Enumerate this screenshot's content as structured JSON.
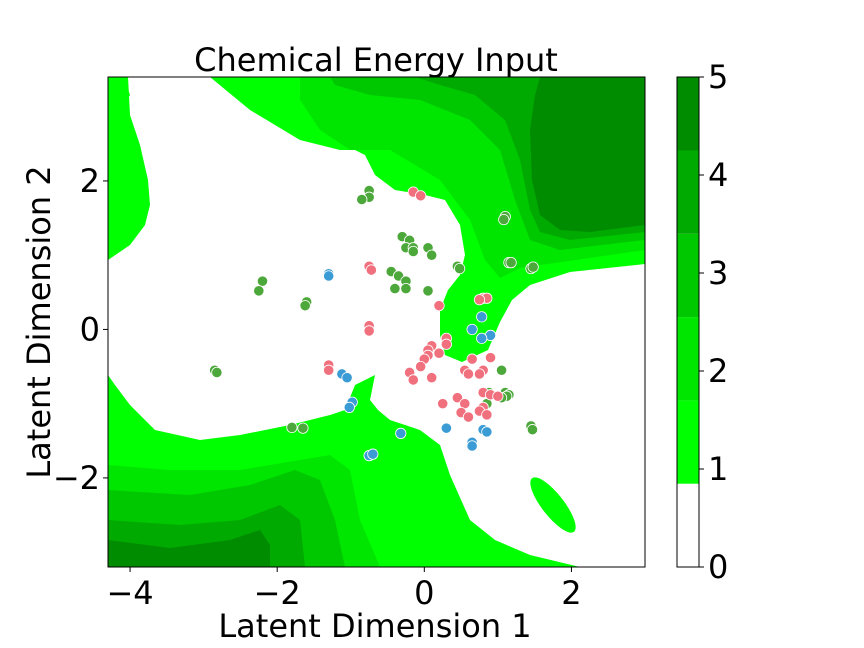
{
  "chart_data": {
    "type": "scatter",
    "title": "Chemical Energy Input",
    "xlabel": "Latent Dimension 1",
    "ylabel": "Latent Dimension 2",
    "xlim": [
      -4.3,
      3.0
    ],
    "ylim": [
      -3.2,
      3.4
    ],
    "xticks": [
      -4,
      -2,
      0,
      2
    ],
    "xtick_labels": [
      "−4",
      "−2",
      "0",
      "2"
    ],
    "yticks": [
      -2,
      0,
      2
    ],
    "ytick_labels": [
      "−2",
      "0",
      "2"
    ],
    "grid": false,
    "colorbar": {
      "range": [
        0,
        5
      ],
      "ticks": [
        0,
        1,
        2,
        3,
        4,
        5
      ],
      "tick_labels": [
        "0",
        "1",
        "2",
        "3",
        "4",
        "5"
      ],
      "levels": [
        {
          "from": 0.0,
          "to": 0.85,
          "color": "#ffffff"
        },
        {
          "from": 0.85,
          "to": 1.7,
          "color": "#00ff00"
        },
        {
          "from": 1.7,
          "to": 2.55,
          "color": "#00e600"
        },
        {
          "from": 2.55,
          "to": 3.4,
          "color": "#00c800"
        },
        {
          "from": 3.4,
          "to": 4.25,
          "color": "#00aa00"
        },
        {
          "from": 4.25,
          "to": 5.0,
          "color": "#008c00"
        }
      ]
    },
    "series": [
      {
        "color": "#4ca83a",
        "points": [
          [
            -0.75,
            1.87
          ],
          [
            -0.75,
            1.78
          ],
          [
            -0.85,
            1.75
          ],
          [
            -0.3,
            1.25
          ],
          [
            -0.2,
            1.2
          ],
          [
            -0.25,
            1.1
          ],
          [
            -0.15,
            1.1
          ],
          [
            -0.15,
            1.05
          ],
          [
            0.05,
            1.1
          ],
          [
            0.1,
            1.0
          ],
          [
            0.45,
            0.85
          ],
          [
            0.48,
            0.82
          ],
          [
            -0.45,
            0.78
          ],
          [
            -0.35,
            0.72
          ],
          [
            -0.25,
            0.65
          ],
          [
            -0.25,
            0.55
          ],
          [
            -0.4,
            0.55
          ],
          [
            0.05,
            0.52
          ],
          [
            1.1,
            1.52
          ],
          [
            1.08,
            1.48
          ],
          [
            1.15,
            0.9
          ],
          [
            1.18,
            0.9
          ],
          [
            1.45,
            0.82
          ],
          [
            1.48,
            0.84
          ],
          [
            -2.2,
            0.65
          ],
          [
            -2.25,
            0.52
          ],
          [
            -1.6,
            0.37
          ],
          [
            -1.62,
            0.32
          ],
          [
            -2.85,
            -0.55
          ],
          [
            -2.82,
            -0.58
          ],
          [
            -1.8,
            -1.32
          ],
          [
            -1.65,
            -1.33
          ],
          [
            1.05,
            -0.55
          ],
          [
            0.88,
            -0.85
          ],
          [
            1.1,
            -0.85
          ],
          [
            1.15,
            -0.88
          ],
          [
            1.12,
            -0.9
          ],
          [
            1.05,
            -0.92
          ],
          [
            0.85,
            -1.0
          ],
          [
            1.45,
            -1.3
          ],
          [
            1.47,
            -1.35
          ]
        ]
      },
      {
        "color": "#f0707e",
        "points": [
          [
            -0.15,
            1.85
          ],
          [
            -0.05,
            1.8
          ],
          [
            -0.75,
            0.85
          ],
          [
            -0.72,
            0.8
          ],
          [
            0.8,
            0.42
          ],
          [
            0.85,
            0.42
          ],
          [
            0.75,
            0.4
          ],
          [
            0.2,
            0.32
          ],
          [
            -0.75,
            0.05
          ],
          [
            -0.75,
            -0.02
          ],
          [
            0.3,
            -0.12
          ],
          [
            0.3,
            -0.2
          ],
          [
            0.1,
            -0.22
          ],
          [
            0.05,
            -0.28
          ],
          [
            0.2,
            -0.32
          ],
          [
            0.05,
            -0.35
          ],
          [
            0.0,
            -0.4
          ],
          [
            0.65,
            -0.4
          ],
          [
            0.9,
            -0.38
          ],
          [
            -1.3,
            -0.48
          ],
          [
            -1.3,
            -0.55
          ],
          [
            -0.05,
            -0.5
          ],
          [
            0.55,
            -0.55
          ],
          [
            0.8,
            -0.55
          ],
          [
            -0.2,
            -0.58
          ],
          [
            -0.15,
            -0.68
          ],
          [
            0.6,
            -0.6
          ],
          [
            0.75,
            -0.6
          ],
          [
            0.1,
            -0.65
          ],
          [
            0.8,
            -0.85
          ],
          [
            0.9,
            -0.88
          ],
          [
            1.0,
            -0.9
          ],
          [
            0.45,
            -0.92
          ],
          [
            0.55,
            -1.0
          ],
          [
            0.25,
            -1.0
          ],
          [
            0.8,
            -1.05
          ],
          [
            0.75,
            -1.1
          ],
          [
            0.85,
            -1.15
          ],
          [
            0.5,
            -1.12
          ],
          [
            0.6,
            -1.18
          ]
        ]
      },
      {
        "color": "#3a9bd5",
        "points": [
          [
            -1.3,
            0.75
          ],
          [
            -1.3,
            0.72
          ],
          [
            0.78,
            0.17
          ],
          [
            0.65,
            0.0
          ],
          [
            0.9,
            -0.08
          ],
          [
            0.78,
            -0.12
          ],
          [
            -1.12,
            -0.6
          ],
          [
            -1.05,
            -0.65
          ],
          [
            -0.98,
            -0.98
          ],
          [
            -1.02,
            -1.05
          ],
          [
            0.3,
            -1.33
          ],
          [
            0.8,
            -1.35
          ],
          [
            0.85,
            -1.38
          ],
          [
            -0.32,
            -1.4
          ],
          [
            0.65,
            -1.52
          ],
          [
            0.65,
            -1.57
          ],
          [
            -0.75,
            -1.7
          ],
          [
            -0.7,
            -1.68
          ]
        ]
      }
    ]
  }
}
